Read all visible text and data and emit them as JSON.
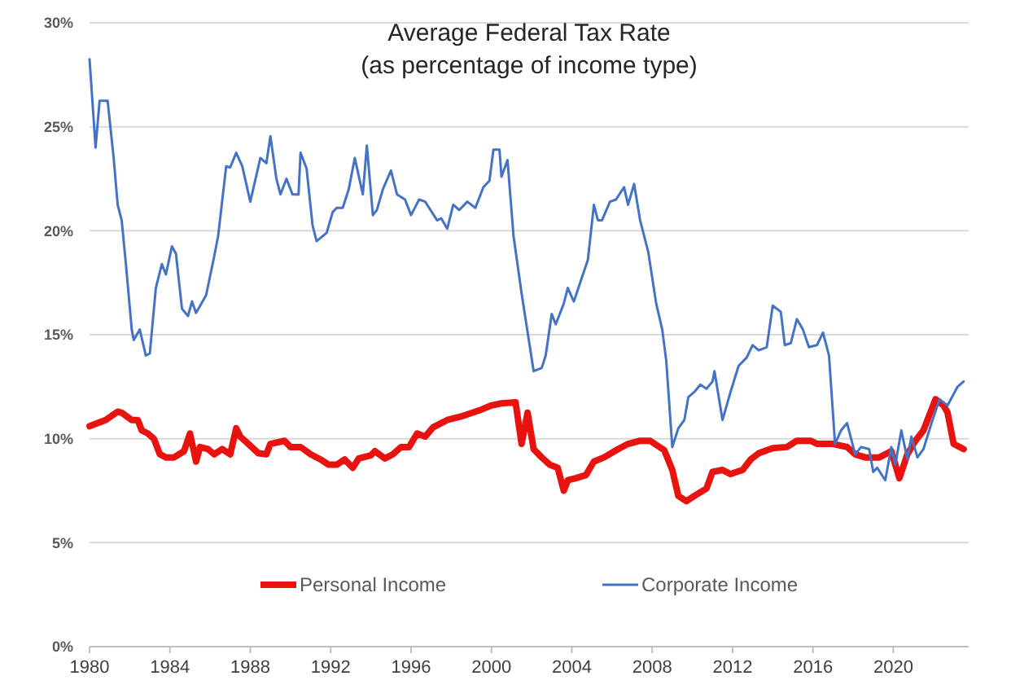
{
  "chart_data": {
    "type": "line",
    "title": "Average Federal Tax Rate",
    "subtitle": "(as percentage of income type)",
    "xlim": [
      1980,
      2023.75
    ],
    "xticks": [
      1980,
      1984,
      1988,
      1992,
      1996,
      2000,
      2004,
      2008,
      2012,
      2016,
      2020
    ],
    "ylim": [
      0,
      30
    ],
    "yticks": [
      {
        "value": 0,
        "label": "0%"
      },
      {
        "value": 5,
        "label": "5%"
      },
      {
        "value": 10,
        "label": "10%"
      },
      {
        "value": 15,
        "label": "15%"
      },
      {
        "value": 20,
        "label": "20%"
      },
      {
        "value": 25,
        "label": "25%"
      },
      {
        "value": 30,
        "label": "30%"
      }
    ],
    "grid": "y",
    "legend": "bottom",
    "marker": "none",
    "line_style": "solid",
    "series": [
      {
        "name": "Personal Income",
        "color": "#e8130f",
        "x": [
          1980,
          1980.4,
          1980.8,
          1981.4,
          1981.6,
          1982.1,
          1982.4,
          1982.6,
          1982.9,
          1983.2,
          1983.5,
          1983.8,
          1984.2,
          1984.7,
          1985.0,
          1985.3,
          1985.5,
          1985.9,
          1986.2,
          1986.6,
          1987.0,
          1987.3,
          1987.5,
          1987.9,
          1988.4,
          1988.8,
          1989.0,
          1989.7,
          1990.0,
          1990.5,
          1991.0,
          1991.5,
          1991.9,
          1992.3,
          1992.7,
          1993.1,
          1993.4,
          1994.0,
          1994.2,
          1994.7,
          1995.1,
          1995.5,
          1995.9,
          1996.3,
          1996.7,
          1997.1,
          1997.8,
          1998.6,
          1999.5,
          2000.0,
          2000.5,
          2001.2,
          2001.5,
          2001.8,
          2002.1,
          2002.5,
          2002.9,
          2003.3,
          2003.6,
          2003.8,
          2004.2,
          2004.7,
          2005.1,
          2005.6,
          2006.3,
          2006.8,
          2007.4,
          2007.9,
          2008.6,
          2009.0,
          2009.3,
          2009.7,
          2010.1,
          2010.7,
          2011.0,
          2011.5,
          2011.9,
          2012.5,
          2012.9,
          2013.3,
          2014.0,
          2014.7,
          2015.2,
          2015.9,
          2016.2,
          2017.0,
          2017.7,
          2018.1,
          2018.6,
          2019.3,
          2019.9,
          2020.3,
          2020.7,
          2021.1,
          2021.5,
          2022.1,
          2022.5,
          2022.7,
          2023.0,
          2023.5
        ],
        "values": [
          10.6,
          10.75,
          10.9,
          11.3,
          11.25,
          10.9,
          10.9,
          10.4,
          10.25,
          10.0,
          9.25,
          9.1,
          9.1,
          9.4,
          10.25,
          8.9,
          9.6,
          9.5,
          9.25,
          9.5,
          9.25,
          10.5,
          10.1,
          9.75,
          9.3,
          9.25,
          9.75,
          9.9,
          9.6,
          9.6,
          9.25,
          9.0,
          8.75,
          8.75,
          9.0,
          8.6,
          9.05,
          9.2,
          9.4,
          9.05,
          9.25,
          9.6,
          9.6,
          10.25,
          10.1,
          10.55,
          10.9,
          11.1,
          11.4,
          11.6,
          11.7,
          11.75,
          9.75,
          11.25,
          9.5,
          9.1,
          8.75,
          8.6,
          7.5,
          8.0,
          8.1,
          8.25,
          8.9,
          9.1,
          9.5,
          9.75,
          9.9,
          9.9,
          9.45,
          8.5,
          7.25,
          7.0,
          7.25,
          7.6,
          8.4,
          8.5,
          8.3,
          8.5,
          9.0,
          9.3,
          9.55,
          9.6,
          9.9,
          9.9,
          9.75,
          9.75,
          9.6,
          9.25,
          9.1,
          9.1,
          9.4,
          8.1,
          9.25,
          9.9,
          10.4,
          11.9,
          11.6,
          11.25,
          9.75,
          9.5
        ]
      },
      {
        "name": "Corporate Income",
        "color": "#4472c4",
        "x": [
          1980,
          1980.3,
          1980.5,
          1980.9,
          1981.2,
          1981.4,
          1981.6,
          1981.8,
          1982.1,
          1982.2,
          1982.5,
          1982.8,
          1983.0,
          1983.3,
          1983.6,
          1983.8,
          1984.1,
          1984.3,
          1984.6,
          1984.9,
          1985.1,
          1985.3,
          1985.8,
          1986.2,
          1986.4,
          1986.8,
          1987.0,
          1987.3,
          1987.6,
          1988.0,
          1988.5,
          1988.8,
          1989.0,
          1989.3,
          1989.5,
          1989.8,
          1990.1,
          1990.4,
          1990.5,
          1990.8,
          1991.1,
          1991.3,
          1991.8,
          1992.1,
          1992.3,
          1992.6,
          1992.9,
          1993.2,
          1993.6,
          1993.8,
          1994.1,
          1994.3,
          1994.6,
          1995.0,
          1995.3,
          1995.7,
          1996.0,
          1996.4,
          1996.7,
          1997.3,
          1997.5,
          1997.8,
          1998.1,
          1998.4,
          1998.8,
          1999.2,
          1999.6,
          1999.9,
          2000.1,
          2000.4,
          2000.5,
          2000.8,
          2001.1,
          2001.5,
          2001.9,
          2002.1,
          2002.5,
          2002.7,
          2003.0,
          2003.2,
          2003.6,
          2003.8,
          2004.1,
          2004.8,
          2005.1,
          2005.3,
          2005.5,
          2005.9,
          2006.2,
          2006.6,
          2006.8,
          2007.1,
          2007.4,
          2007.8,
          2008.2,
          2008.5,
          2008.7,
          2009.0,
          2009.3,
          2009.6,
          2009.8,
          2010.1,
          2010.4,
          2010.7,
          2011.0,
          2011.1,
          2011.5,
          2011.9,
          2012.3,
          2012.7,
          2013.0,
          2013.3,
          2013.7,
          2014.0,
          2014.4,
          2014.6,
          2014.9,
          2015.2,
          2015.5,
          2015.8,
          2016.2,
          2016.5,
          2016.8,
          2017.1,
          2017.4,
          2017.7,
          2018.1,
          2018.4,
          2018.8,
          2019.0,
          2019.2,
          2019.6,
          2019.9,
          2020.1,
          2020.4,
          2020.7,
          2020.9,
          2021.2,
          2021.5,
          2021.9,
          2022.3,
          2022.7,
          2023.2,
          2023.5
        ],
        "values": [
          28.25,
          24.0,
          26.25,
          26.25,
          23.5,
          21.25,
          20.5,
          18.5,
          15.25,
          14.75,
          15.25,
          14.0,
          14.1,
          17.25,
          18.4,
          17.9,
          19.25,
          18.9,
          16.25,
          15.9,
          16.6,
          16.05,
          16.9,
          18.75,
          19.75,
          23.1,
          23.05,
          23.75,
          23.1,
          21.4,
          23.5,
          23.25,
          24.55,
          22.5,
          21.75,
          22.5,
          21.75,
          21.75,
          23.75,
          23.0,
          20.25,
          19.5,
          19.9,
          20.9,
          21.1,
          21.1,
          22.0,
          23.5,
          21.75,
          24.1,
          20.75,
          21.0,
          22.0,
          22.9,
          21.75,
          21.5,
          20.75,
          21.5,
          21.4,
          20.5,
          20.6,
          20.1,
          21.25,
          21.0,
          21.4,
          21.1,
          22.1,
          22.4,
          23.9,
          23.9,
          22.6,
          23.4,
          19.75,
          17.0,
          14.5,
          13.25,
          13.4,
          14.0,
          16.0,
          15.5,
          16.5,
          17.25,
          16.6,
          18.6,
          21.25,
          20.5,
          20.5,
          21.4,
          21.5,
          22.1,
          21.25,
          22.25,
          20.5,
          19.0,
          16.5,
          15.25,
          13.75,
          9.6,
          10.5,
          10.9,
          12.0,
          12.25,
          12.6,
          12.4,
          12.75,
          13.25,
          10.9,
          12.25,
          13.5,
          13.9,
          14.5,
          14.25,
          14.4,
          16.4,
          16.1,
          14.5,
          14.6,
          15.75,
          15.25,
          14.4,
          14.5,
          15.1,
          14.0,
          9.75,
          10.4,
          10.75,
          9.25,
          9.6,
          9.5,
          8.4,
          8.6,
          8.0,
          9.6,
          8.75,
          10.4,
          9.0,
          10.1,
          9.1,
          9.5,
          10.75,
          11.9,
          11.6,
          12.5,
          12.75
        ]
      }
    ]
  }
}
